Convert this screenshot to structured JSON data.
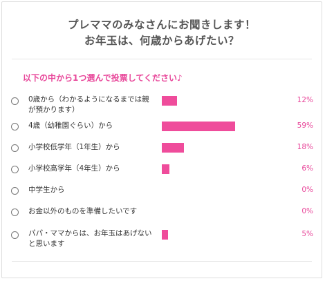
{
  "header": {
    "title_line1": "プレママのみなさんにお聞きします！",
    "title_line2": "お年玉は、何歳からあげたい？"
  },
  "poll": {
    "prompt": "以下の中から1つ選んで投票してください♪",
    "accent_color": "#ef4c9b",
    "options": [
      {
        "label": "0歳から（わかるようになるまでは親が預かります）",
        "percent_text": "12%",
        "value": 0.12
      },
      {
        "label": "4歳（幼稚園ぐらい）から",
        "percent_text": "59%",
        "value": 0.59
      },
      {
        "label": "小学校低学年（1年生）から",
        "percent_text": "18%",
        "value": 0.18
      },
      {
        "label": "小学校高学年（4年生）から",
        "percent_text": "6%",
        "value": 0.06
      },
      {
        "label": "中学生から",
        "percent_text": "0%",
        "value": 0.0
      },
      {
        "label": "お金以外のものを準備したいです",
        "percent_text": "0%",
        "value": 0.0
      },
      {
        "label": "パパ・ママからは、お年玉はあげないと思います",
        "percent_text": "5%",
        "value": 0.05
      }
    ]
  }
}
